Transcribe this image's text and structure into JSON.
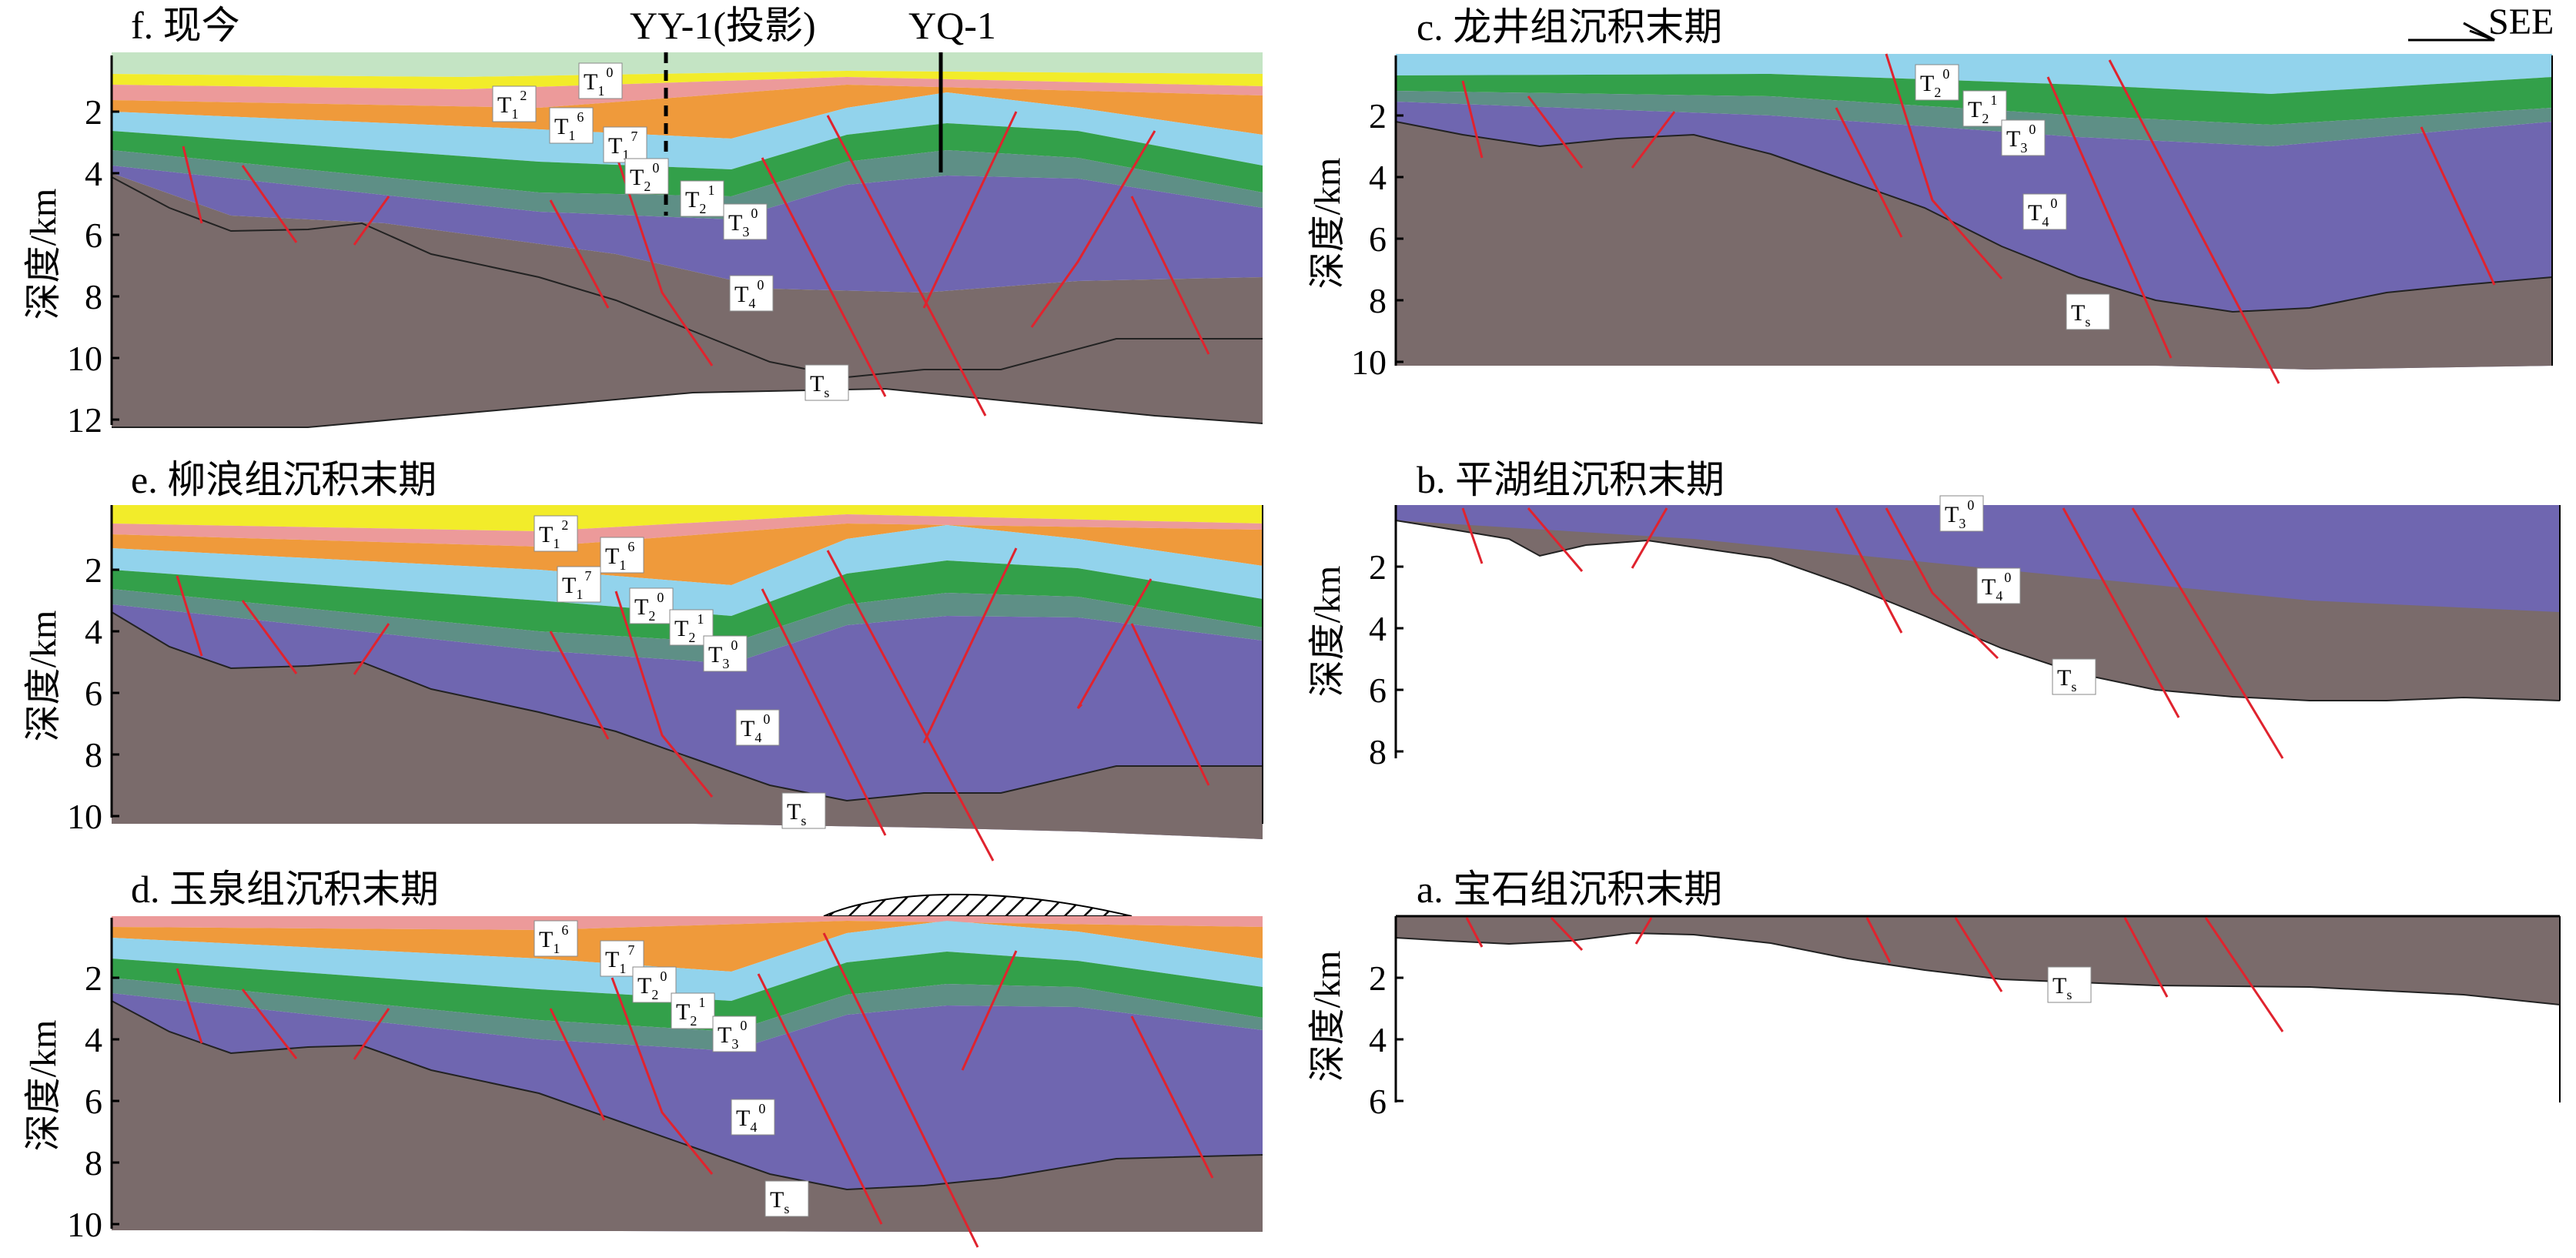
{
  "ylabel": "深度/km",
  "top_label": "SEE",
  "colors": {
    "Ts": "#7a6b6b",
    "T4": "#6f66b0",
    "T3": "#5e8f86",
    "T2": "#33a04a",
    "T2b": "#2e9444",
    "T1sky": "#92d3ec",
    "T1orange": "#ef9a3b",
    "T1pink": "#ec9a9a",
    "T1yellow": "#f2ec2a",
    "Q": "#c4e4c4",
    "fault": "#e0232e",
    "line": "#000000"
  },
  "panels": [
    {
      "id": "f",
      "title": "f. 现今",
      "ticks": [
        "2",
        "4",
        "6",
        "8",
        "10",
        "12"
      ],
      "wells": [
        {
          "label": "YY-1(投影)",
          "style": "dashed"
        },
        {
          "label": "YQ-1",
          "style": "solid"
        }
      ],
      "labels": [
        {
          "base": "T",
          "sub": "1",
          "sup": "0"
        },
        {
          "base": "T",
          "sub": "1",
          "sup": "2"
        },
        {
          "base": "T",
          "sub": "1",
          "sup": "6"
        },
        {
          "base": "T",
          "sub": "1",
          "sup": "7"
        },
        {
          "base": "T",
          "sub": "2",
          "sup": "0"
        },
        {
          "base": "T",
          "sub": "2",
          "sup": "1"
        },
        {
          "base": "T",
          "sub": "3",
          "sup": "0"
        },
        {
          "base": "T",
          "sub": "4",
          "sup": "0"
        },
        {
          "base": "T",
          "sub": "s",
          "sup": ""
        }
      ]
    },
    {
      "id": "e",
      "title": "e. 柳浪组沉积末期",
      "ticks": [
        "2",
        "4",
        "6",
        "8",
        "10"
      ],
      "wells": [],
      "labels": [
        {
          "base": "T",
          "sub": "1",
          "sup": "2"
        },
        {
          "base": "T",
          "sub": "1",
          "sup": "6"
        },
        {
          "base": "T",
          "sub": "1",
          "sup": "7"
        },
        {
          "base": "T",
          "sub": "2",
          "sup": "0"
        },
        {
          "base": "T",
          "sub": "2",
          "sup": "1"
        },
        {
          "base": "T",
          "sub": "3",
          "sup": "0"
        },
        {
          "base": "T",
          "sub": "4",
          "sup": "0"
        },
        {
          "base": "T",
          "sub": "s",
          "sup": ""
        }
      ]
    },
    {
      "id": "d",
      "title": "d. 玉泉组沉积末期",
      "ticks": [
        "2",
        "4",
        "6",
        "8",
        "10"
      ],
      "wells": [],
      "labels": [
        {
          "base": "T",
          "sub": "1",
          "sup": "6"
        },
        {
          "base": "T",
          "sub": "1",
          "sup": "7"
        },
        {
          "base": "T",
          "sub": "2",
          "sup": "0"
        },
        {
          "base": "T",
          "sub": "2",
          "sup": "1"
        },
        {
          "base": "T",
          "sub": "3",
          "sup": "0"
        },
        {
          "base": "T",
          "sub": "4",
          "sup": "0"
        },
        {
          "base": "T",
          "sub": "s",
          "sup": ""
        }
      ]
    },
    {
      "id": "c",
      "title": "c. 龙井组沉积末期",
      "ticks": [
        "2",
        "4",
        "6",
        "8",
        "10"
      ],
      "wells": [],
      "labels": [
        {
          "base": "T",
          "sub": "2",
          "sup": "0"
        },
        {
          "base": "T",
          "sub": "2",
          "sup": "1"
        },
        {
          "base": "T",
          "sub": "3",
          "sup": "0"
        },
        {
          "base": "T",
          "sub": "4",
          "sup": "0"
        },
        {
          "base": "T",
          "sub": "s",
          "sup": ""
        }
      ]
    },
    {
      "id": "b",
      "title": "b. 平湖组沉积末期",
      "ticks": [
        "2",
        "4",
        "6",
        "8"
      ],
      "wells": [],
      "labels": [
        {
          "base": "T",
          "sub": "3",
          "sup": "0"
        },
        {
          "base": "T",
          "sub": "4",
          "sup": "0"
        },
        {
          "base": "T",
          "sub": "s",
          "sup": ""
        }
      ]
    },
    {
      "id": "a",
      "title": "a. 宝石组沉积末期",
      "ticks": [
        "2",
        "4",
        "6"
      ],
      "wells": [],
      "labels": [
        {
          "base": "T",
          "sub": "s",
          "sup": ""
        }
      ]
    }
  ]
}
